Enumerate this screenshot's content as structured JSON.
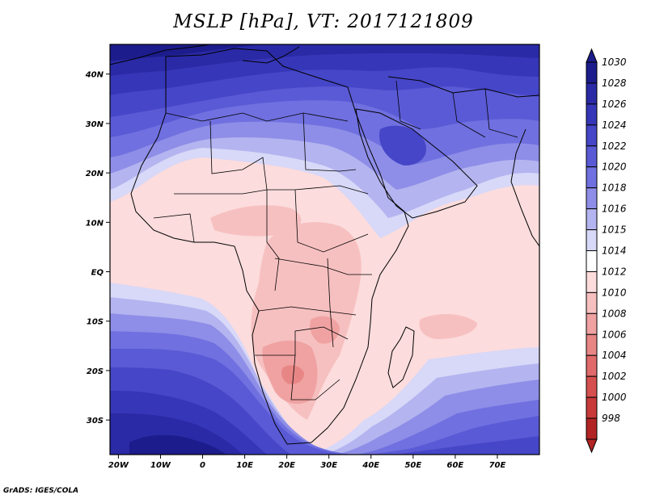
{
  "title": "MSLP [hPa],  VT: 2017121809",
  "credit": "GrADS: IGES/COLA",
  "map": {
    "lon_range": [
      -22,
      80
    ],
    "lat_range": [
      -37,
      46
    ],
    "x_ticks": [
      {
        "lon": -20,
        "label": "20W"
      },
      {
        "lon": -10,
        "label": "10W"
      },
      {
        "lon": 0,
        "label": "0"
      },
      {
        "lon": 10,
        "label": "10E"
      },
      {
        "lon": 20,
        "label": "20E"
      },
      {
        "lon": 30,
        "label": "30E"
      },
      {
        "lon": 40,
        "label": "40E"
      },
      {
        "lon": 50,
        "label": "50E"
      },
      {
        "lon": 60,
        "label": "60E"
      },
      {
        "lon": 70,
        "label": "70E"
      }
    ],
    "y_ticks": [
      {
        "lat": 40,
        "label": "40N"
      },
      {
        "lat": 30,
        "label": "30N"
      },
      {
        "lat": 20,
        "label": "20N"
      },
      {
        "lat": 10,
        "label": "10N"
      },
      {
        "lat": 0,
        "label": "EQ"
      },
      {
        "lat": -10,
        "label": "10S"
      },
      {
        "lat": -20,
        "label": "20S"
      },
      {
        "lat": -30,
        "label": "30S"
      }
    ]
  },
  "colorbar": {
    "levels": [
      {
        "label": "1030",
        "color": "#1c1c8c"
      },
      {
        "label": "1028",
        "color": "#2a2aa6"
      },
      {
        "label": "1026",
        "color": "#3636b8"
      },
      {
        "label": "1024",
        "color": "#4646c8"
      },
      {
        "label": "1022",
        "color": "#5a5ad6"
      },
      {
        "label": "1020",
        "color": "#7070e0"
      },
      {
        "label": "1018",
        "color": "#8e8ee8"
      },
      {
        "label": "1016",
        "color": "#b4b4f0"
      },
      {
        "label": "1015",
        "color": "#d8d8f8"
      },
      {
        "label": "1014",
        "color": "#ffffff"
      },
      {
        "label": "1012",
        "color": "#fcdcdc"
      },
      {
        "label": "1010",
        "color": "#f7c0c0"
      },
      {
        "label": "1008",
        "color": "#f0a2a2"
      },
      {
        "label": "1006",
        "color": "#e88686"
      },
      {
        "label": "1004",
        "color": "#e06a6a"
      },
      {
        "label": "1002",
        "color": "#d65050"
      },
      {
        "label": "1000",
        "color": "#c83a3a"
      },
      {
        "label": "998",
        "color": "#b22424"
      }
    ]
  }
}
